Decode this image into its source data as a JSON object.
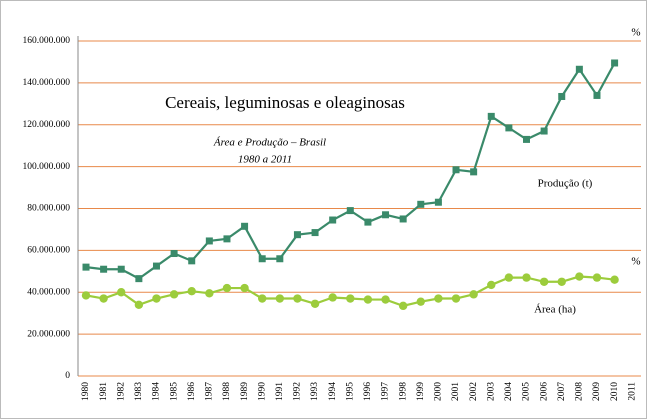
{
  "chart_data": {
    "type": "line",
    "title": "Cereais, leguminosas e oleaginosas",
    "subtitle": "Área e Produção – Brasil",
    "period": "1980 a 2011",
    "annotations": [
      "%",
      "%"
    ],
    "categories": [
      "1980",
      "1981",
      "1982",
      "1983",
      "1984",
      "1985",
      "1986",
      "1987",
      "1988",
      "1989",
      "1990",
      "1991",
      "1992",
      "1993",
      "1994",
      "1995",
      "1996",
      "1997",
      "1998",
      "1999",
      "2000",
      "2001",
      "2002",
      "2003",
      "2004",
      "2005",
      "2006",
      "2007",
      "2008",
      "2009",
      "2010",
      "2011"
    ],
    "series": [
      {
        "name": "Produção (t)",
        "color": "#3a8a6a",
        "marker": "square",
        "values": [
          52000000,
          51000000,
          51000000,
          46500000,
          52500000,
          58500000,
          55000000,
          64500000,
          65500000,
          71500000,
          56000000,
          56000000,
          67500000,
          68500000,
          74500000,
          79000000,
          73500000,
          77000000,
          75000000,
          82000000,
          83000000,
          98500000,
          97500000,
          124000000,
          118500000,
          113000000,
          117000000,
          133500000,
          146500000,
          134000000,
          149500000,
          null
        ]
      },
      {
        "name": "Área (ha)",
        "color": "#9ccc3c",
        "marker": "circle",
        "values": [
          38500000,
          37000000,
          40000000,
          34000000,
          37000000,
          39000000,
          40500000,
          39500000,
          42000000,
          42000000,
          37000000,
          37000000,
          37000000,
          34500000,
          37500000,
          37000000,
          36500000,
          36500000,
          33500000,
          35500000,
          37000000,
          37000000,
          39000000,
          43500000,
          47000000,
          47000000,
          45000000,
          45000000,
          47500000,
          47000000,
          46000000,
          null
        ]
      }
    ],
    "ylim": [
      0,
      160000000
    ],
    "yticks": [
      0,
      {
        "value": 20000000,
        "label": "20.000.000"
      },
      {
        "value": 40000000,
        "label": "40.000.000"
      },
      {
        "value": 60000000,
        "label": "60.000.000"
      },
      {
        "value": 80000000,
        "label": "80.000.000"
      },
      {
        "value": 100000000,
        "label": "100.000.000"
      },
      {
        "value": 120000000,
        "label": "120.000.000"
      },
      {
        "value": 140000000,
        "label": "140.000.000"
      },
      {
        "value": 160000000,
        "label": "160.000.000"
      }
    ],
    "grid": true,
    "grid_color": "#e8894a"
  }
}
